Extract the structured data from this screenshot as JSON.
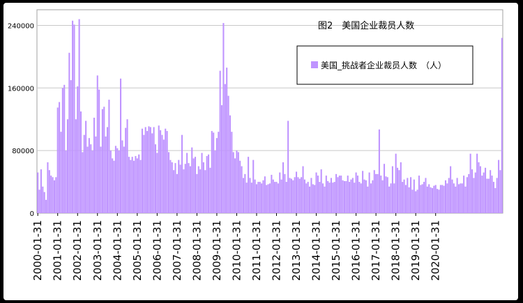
{
  "chart_data": {
    "type": "bar",
    "title": "图2　美国企业裁员人数",
    "series": [
      {
        "name": "美国_挑战者企业裁员人数　（人）",
        "color": "#BF94FF",
        "values": [
          52000,
          30000,
          56000,
          34000,
          27000,
          17000,
          65000,
          55000,
          48000,
          46000,
          42000,
          46000,
          135000,
          142000,
          104000,
          160000,
          164000,
          80000,
          120000,
          205000,
          170000,
          246000,
          241000,
          120000,
          162000,
          248000,
          130000,
          78000,
          100000,
          118000,
          85000,
          96000,
          88000,
          80000,
          122000,
          98000,
          176000,
          158000,
          85000,
          133000,
          136000,
          98000,
          110000,
          145000,
          80000,
          70000,
          67000,
          86000,
          83000,
          80000,
          172000,
          93000,
          85000,
          109000,
          120000,
          72000,
          68000,
          72000,
          67000,
          73000,
          70000,
          75000,
          68000,
          108000,
          100000,
          110000,
          105000,
          111000,
          110000,
          102000,
          110000,
          88000,
          77000,
          112000,
          106000,
          100000,
          94000,
          108000,
          105000,
          78000,
          68000,
          65000,
          55000,
          64000,
          50000,
          68000,
          62000,
          100000,
          56000,
          63000,
          77000,
          64000,
          60000,
          84000,
          70000,
          72000,
          50000,
          60000,
          56000,
          77000,
          65000,
          55000,
          73000,
          75000,
          58000,
          105000,
          103000,
          80000,
          96000,
          104000,
          182000,
          138000,
          243000,
          165000,
          186000,
          150000,
          125000,
          104000,
          78000,
          70000,
          80000,
          78000,
          67000,
          60000,
          45000,
          50000,
          39000,
          72000,
          45000,
          39000,
          68000,
          43000,
          37000,
          40000,
          40000,
          38000,
          42000,
          47000,
          36000,
          37000,
          38000,
          49000,
          43000,
          40000,
          40000,
          38000,
          52000,
          43000,
          65000,
          50000,
          40000,
          118000,
          45000,
          44000,
          42000,
          46000,
          53000,
          46000,
          44000,
          46000,
          60000,
          43000,
          38000,
          40000,
          34000,
          45000,
          37000,
          36000,
          52000,
          48000,
          40000,
          56000,
          38000,
          34000,
          48000,
          41000,
          39000,
          45000,
          39000,
          40000,
          50000,
          46000,
          48000,
          48000,
          42000,
          41000,
          41000,
          48000,
          40000,
          43000,
          45000,
          39000,
          52000,
          48000,
          40000,
          38000,
          54000,
          43000,
          42000,
          34000,
          52000,
          38000,
          42000,
          55000,
          50000,
          50000,
          107000,
          48000,
          42000,
          63000,
          47000,
          46000,
          34000,
          38000,
          60000,
          38000,
          76000,
          58000,
          55000,
          65000,
          40000,
          43000,
          36000,
          45000,
          33000,
          46000,
          30000,
          43000,
          28000,
          30000,
          48000,
          36000,
          37000,
          40000,
          45000,
          34000,
          37000,
          33000,
          32000,
          35000,
          36000,
          31000,
          30000,
          36000,
          36000,
          35000,
          42000,
          38000,
          45000,
          60000,
          43000,
          38000,
          34000,
          45000,
          37000,
          38000,
          38000,
          48000,
          34000,
          46000,
          50000,
          76000,
          56000,
          45000,
          52000,
          76000,
          65000,
          60000,
          48000,
          52000,
          58000,
          44000,
          44000,
          55000,
          48000,
          40000,
          32000,
          45000,
          68000,
          55000,
          224000
        ]
      }
    ],
    "start_date": "2000-01-31",
    "frequency": "monthly",
    "xticks": [
      "2000-01-31",
      "2001-01-31",
      "2002-01-31",
      "2003-01-31",
      "2004-01-31",
      "2005-01-31",
      "2006-01-31",
      "2007-01-31",
      "2008-01-31",
      "2009-01-31",
      "2010-01-31",
      "2011-01-31",
      "2012-01-31",
      "2013-01-31",
      "2014-01-31",
      "2015-01-31",
      "2016-01-31",
      "2017-01-31",
      "2018-01-31",
      "2019-01-31",
      "2020-01-31"
    ],
    "yticks": [
      "0",
      "80000",
      "160000",
      "240000"
    ],
    "ylim": [
      0,
      260000
    ],
    "grid": "horizontal",
    "legend_position": "top-right",
    "xlabel": "",
    "ylabel": ""
  }
}
